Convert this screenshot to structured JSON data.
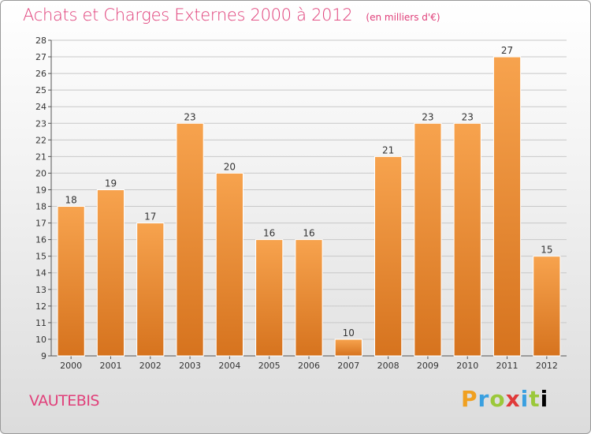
{
  "header": {
    "title": "Achats et Charges Externes 2000 à 2012",
    "unit": "(en milliers d'€)"
  },
  "footer": {
    "commune": "VAUTEBIS",
    "brand": [
      "P",
      "r",
      "o",
      "x",
      "i",
      "t",
      "i"
    ]
  },
  "colors": {
    "bar_top": "#f7a34e",
    "bar_bottom": "#d6731e",
    "title": "#e0407a"
  },
  "chart_data": {
    "type": "bar",
    "title": "Achats et Charges Externes 2000 à 2012",
    "subtitle": "(en milliers d'€)",
    "categories": [
      "2000",
      "2001",
      "2002",
      "2003",
      "2004",
      "2005",
      "2006",
      "2007",
      "2008",
      "2009",
      "2010",
      "2011",
      "2012"
    ],
    "values": [
      18,
      19,
      17,
      23,
      20,
      16,
      16,
      10,
      21,
      23,
      23,
      27,
      15
    ],
    "ylim": [
      9,
      28
    ],
    "yticks": [
      9,
      10,
      11,
      12,
      13,
      14,
      15,
      16,
      17,
      18,
      19,
      20,
      21,
      22,
      23,
      24,
      25,
      26,
      27,
      28
    ],
    "grid": true,
    "xlabel": "",
    "ylabel": ""
  }
}
